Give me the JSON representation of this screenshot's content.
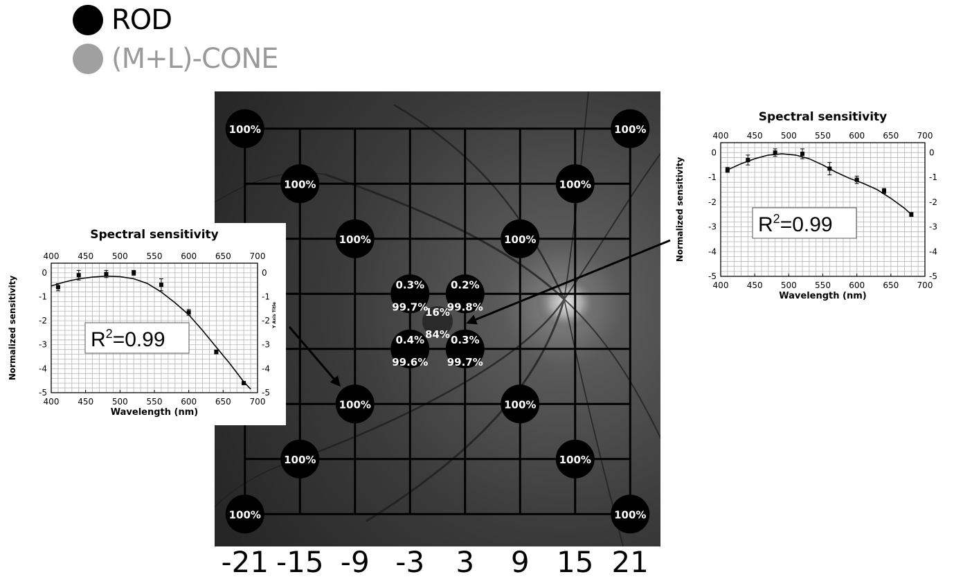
{
  "legend": [
    {
      "label": "ROD",
      "color": "#000000"
    },
    {
      "label": "(M+L)-CONE",
      "color": "#a0a0a0"
    }
  ],
  "retina": {
    "x_tick_labels": [
      "-21",
      "-15",
      "-9",
      "-3",
      "3",
      "9",
      "15",
      "21"
    ],
    "grid_positions_deg": [
      -21,
      -15,
      -9,
      -3,
      3,
      9,
      15,
      21
    ],
    "measurement_points": [
      {
        "x": -21,
        "y": 21,
        "rod_label": "100%"
      },
      {
        "x": 21,
        "y": 21,
        "rod_label": "100%"
      },
      {
        "x": -15,
        "y": 15,
        "rod_label": "100%"
      },
      {
        "x": 15,
        "y": 15,
        "rod_label": "100%"
      },
      {
        "x": -9,
        "y": 9,
        "rod_label": "100%"
      },
      {
        "x": 9,
        "y": 9,
        "rod_label": "100%"
      },
      {
        "x": -9,
        "y": -9,
        "rod_label": "100%"
      },
      {
        "x": 9,
        "y": -9,
        "rod_label": "100%"
      },
      {
        "x": -15,
        "y": -15,
        "rod_label": "100%"
      },
      {
        "x": 15,
        "y": -15,
        "rod_label": "100%"
      },
      {
        "x": -21,
        "y": -21,
        "rod_label": "100%"
      },
      {
        "x": 21,
        "y": -21,
        "rod_label": "100%"
      },
      {
        "x": -3,
        "y": 3,
        "rod_label": "0.3%",
        "cone_label": "99.7%"
      },
      {
        "x": 3,
        "y": 3,
        "rod_label": "0.2%",
        "cone_label": "99.8%"
      },
      {
        "x": 0,
        "y": 0,
        "rod_label": "16%",
        "cone_label": "84%"
      },
      {
        "x": -3,
        "y": -3,
        "rod_label": "0.4%",
        "cone_label": "99.6%"
      },
      {
        "x": 3,
        "y": -3,
        "rod_label": "0.3%",
        "cone_label": "99.7%"
      }
    ]
  },
  "insets": [
    {
      "id": "left",
      "title": "Spectral sensitivity",
      "xlabel": "Wavelength (nm)",
      "ylabel": "Normalized sensitivity",
      "right_axis_title": "Y Axis Title",
      "r2_label": "R",
      "r2_sup": "2",
      "r2_value": "=0.99",
      "x_ticks": [
        "400",
        "450",
        "500",
        "550",
        "600",
        "650",
        "700"
      ],
      "y_ticks": [
        "0",
        "-1",
        "-2",
        "-3",
        "-4",
        "-5"
      ]
    },
    {
      "id": "right",
      "title": "Spectral sensitivity",
      "xlabel": "Wavelength (nm)",
      "ylabel": "Normalized sensitivity",
      "right_axis_title": "",
      "r2_label": "R",
      "r2_sup": "2",
      "r2_value": "=0.99",
      "x_ticks": [
        "400",
        "450",
        "500",
        "550",
        "600",
        "650",
        "700"
      ],
      "y_ticks": [
        "0",
        "-1",
        "-2",
        "-3",
        "-4",
        "-5"
      ]
    }
  ],
  "chart_data": [
    {
      "type": "scatter",
      "title": "Spectral sensitivity",
      "xlabel": "Wavelength (nm)",
      "ylabel": "Normalized sensitivity",
      "xlim": [
        400,
        700
      ],
      "ylim": [
        -5,
        0.4
      ],
      "grid": true,
      "points": {
        "x": [
          410,
          440,
          480,
          520,
          560,
          600,
          640,
          680
        ],
        "y": [
          -0.6,
          -0.1,
          -0.05,
          0.0,
          -0.5,
          -1.65,
          -3.3,
          -4.6
        ],
        "err": [
          0.15,
          0.2,
          0.15,
          0.1,
          0.25,
          0.12,
          0.08,
          0.06
        ]
      },
      "fit": {
        "x": [
          400,
          420,
          440,
          460,
          480,
          500,
          520,
          540,
          560,
          580,
          600,
          620,
          640,
          660,
          680,
          690
        ],
        "y": [
          -0.55,
          -0.38,
          -0.25,
          -0.18,
          -0.14,
          -0.16,
          -0.25,
          -0.45,
          -0.8,
          -1.25,
          -1.75,
          -2.4,
          -3.1,
          -3.8,
          -4.55,
          -4.85
        ]
      },
      "annotation": "R2=0.99"
    },
    {
      "type": "scatter",
      "title": "Spectral sensitivity",
      "xlabel": "Wavelength (nm)",
      "ylabel": "Normalized sensitivity",
      "xlim": [
        400,
        700
      ],
      "ylim": [
        -5,
        0.4
      ],
      "grid": true,
      "points": {
        "x": [
          410,
          440,
          480,
          520,
          560,
          600,
          640,
          680
        ],
        "y": [
          -0.7,
          -0.3,
          0.0,
          -0.05,
          -0.65,
          -1.1,
          -1.55,
          -2.5
        ],
        "err": [
          0.1,
          0.2,
          0.15,
          0.2,
          0.25,
          0.15,
          0.1,
          0.08
        ]
      },
      "fit": {
        "x": [
          410,
          430,
          450,
          470,
          490,
          510,
          530,
          550,
          570,
          590,
          610,
          630,
          650,
          670,
          680
        ],
        "y": [
          -0.7,
          -0.45,
          -0.25,
          -0.1,
          -0.05,
          -0.1,
          -0.25,
          -0.5,
          -0.8,
          -1.05,
          -1.25,
          -1.5,
          -1.85,
          -2.25,
          -2.5
        ]
      },
      "annotation": "R2=0.99"
    }
  ]
}
